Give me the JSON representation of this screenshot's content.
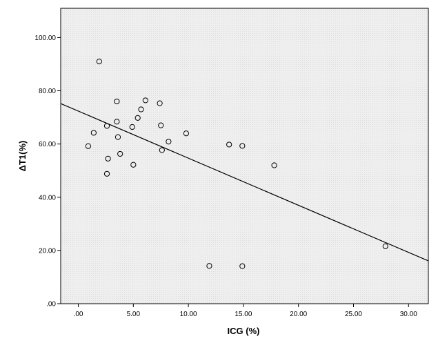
{
  "chart_data": {
    "type": "scatter",
    "title": "",
    "xlabel": "ICG (%)",
    "ylabel": "ΔT1(%)",
    "xlim": [
      -1.6,
      31.8
    ],
    "ylim": [
      0,
      111
    ],
    "x_ticks": [
      0,
      5,
      10,
      15,
      20,
      25,
      30
    ],
    "x_tick_labels": [
      ".00",
      "5.00",
      "10.00",
      "15.00",
      "20.00",
      "25.00",
      "30.00"
    ],
    "y_ticks": [
      0,
      20,
      40,
      60,
      80,
      100
    ],
    "y_tick_labels": [
      ".00",
      "20.00",
      "40.00",
      "60.00",
      "80.00",
      "100.00"
    ],
    "grid": false,
    "plot_background": "#ececec",
    "marker_color": "#000000",
    "line_color": "#000000",
    "points": [
      {
        "x": 1.9,
        "y": 91.0
      },
      {
        "x": 3.5,
        "y": 76.0
      },
      {
        "x": 6.1,
        "y": 76.4
      },
      {
        "x": 7.4,
        "y": 75.3
      },
      {
        "x": 5.7,
        "y": 73.0
      },
      {
        "x": 5.4,
        "y": 69.8
      },
      {
        "x": 3.5,
        "y": 68.4
      },
      {
        "x": 2.6,
        "y": 66.8
      },
      {
        "x": 4.9,
        "y": 66.4
      },
      {
        "x": 7.5,
        "y": 67.0
      },
      {
        "x": 1.4,
        "y": 64.2
      },
      {
        "x": 9.8,
        "y": 64.0
      },
      {
        "x": 3.6,
        "y": 62.6
      },
      {
        "x": 8.2,
        "y": 60.9
      },
      {
        "x": 0.9,
        "y": 59.2
      },
      {
        "x": 13.7,
        "y": 59.8
      },
      {
        "x": 14.9,
        "y": 59.3
      },
      {
        "x": 7.6,
        "y": 57.7
      },
      {
        "x": 3.8,
        "y": 56.3
      },
      {
        "x": 2.7,
        "y": 54.5
      },
      {
        "x": 5.0,
        "y": 52.2
      },
      {
        "x": 17.8,
        "y": 52.0
      },
      {
        "x": 2.6,
        "y": 48.8
      },
      {
        "x": 11.9,
        "y": 14.2
      },
      {
        "x": 14.9,
        "y": 14.1
      },
      {
        "x": 27.9,
        "y": 21.6
      }
    ],
    "fit_line": {
      "x1": -1.6,
      "y1": 75.2,
      "x2": 31.8,
      "y2": 16.1
    }
  }
}
